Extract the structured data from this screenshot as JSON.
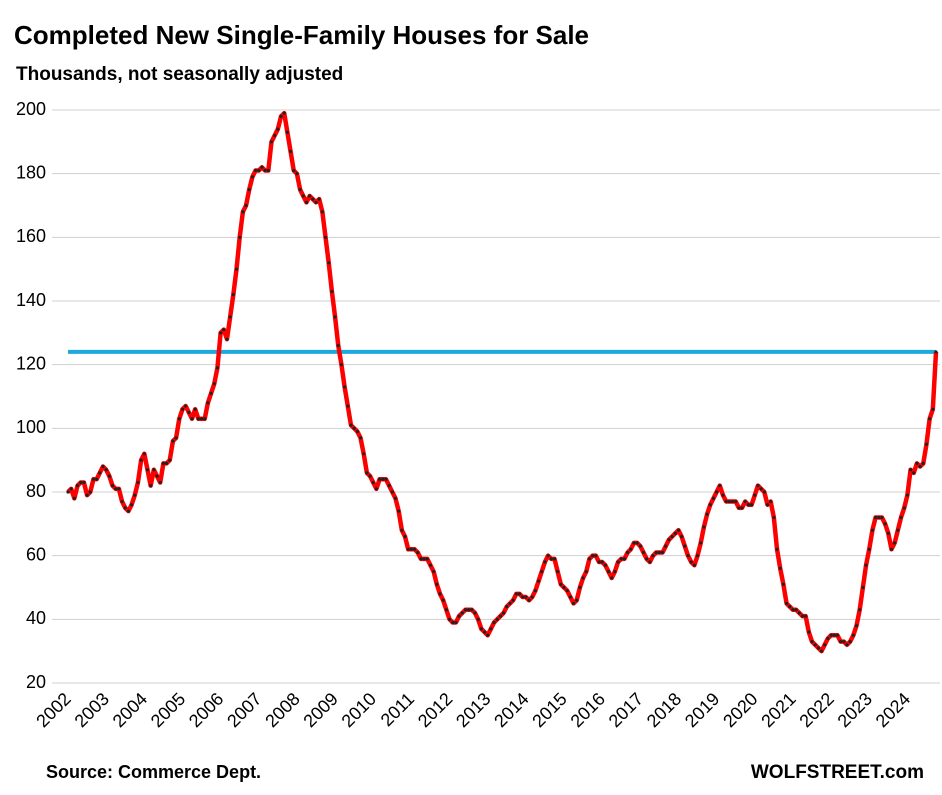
{
  "chart_data": {
    "type": "line",
    "title": "Completed New Single-Family Houses for Sale",
    "subtitle": "Thousands, not seasonally adjusted",
    "source": "Source: Commerce Dept.",
    "brand": "WOLFSTREET.com",
    "categories": [
      "2002",
      null,
      null,
      null,
      null,
      null,
      null,
      null,
      null,
      null,
      null,
      null,
      "2003",
      null,
      null,
      null,
      null,
      null,
      null,
      null,
      null,
      null,
      null,
      null,
      "2004",
      null,
      null,
      null,
      null,
      null,
      null,
      null,
      null,
      null,
      null,
      null,
      "2005",
      null,
      null,
      null,
      null,
      null,
      null,
      null,
      null,
      null,
      null,
      null,
      "2006",
      null,
      null,
      null,
      null,
      null,
      null,
      null,
      null,
      null,
      null,
      null,
      "2007",
      null,
      null,
      null,
      null,
      null,
      null,
      null,
      null,
      null,
      null,
      null,
      "2008",
      null,
      null,
      null,
      null,
      null,
      null,
      null,
      null,
      null,
      null,
      null,
      "2009",
      null,
      null,
      null,
      null,
      null,
      null,
      null,
      null,
      null,
      null,
      null,
      "2010",
      null,
      null,
      null,
      null,
      null,
      null,
      null,
      null,
      null,
      null,
      null,
      "2011",
      null,
      null,
      null,
      null,
      null,
      null,
      null,
      null,
      null,
      null,
      null,
      "2012",
      null,
      null,
      null,
      null,
      null,
      null,
      null,
      null,
      null,
      null,
      null,
      "2013",
      null,
      null,
      null,
      null,
      null,
      null,
      null,
      null,
      null,
      null,
      null,
      "2014",
      null,
      null,
      null,
      null,
      null,
      null,
      null,
      null,
      null,
      null,
      null,
      "2015",
      null,
      null,
      null,
      null,
      null,
      null,
      null,
      null,
      null,
      null,
      null,
      "2016",
      null,
      null,
      null,
      null,
      null,
      null,
      null,
      null,
      null,
      null,
      null,
      "2017",
      null,
      null,
      null,
      null,
      null,
      null,
      null,
      null,
      null,
      null,
      null,
      "2018",
      null,
      null,
      null,
      null,
      null,
      null,
      null,
      null,
      null,
      null,
      null,
      "2019",
      null,
      null,
      null,
      null,
      null,
      null,
      null,
      null,
      null,
      null,
      null,
      "2020",
      null,
      null,
      null,
      null,
      null,
      null,
      null,
      null,
      null,
      null,
      null,
      "2021",
      null,
      null,
      null,
      null,
      null,
      null,
      null,
      null,
      null,
      null,
      null,
      "2022",
      null,
      null,
      null,
      null,
      null,
      null,
      null,
      null,
      null,
      null,
      null,
      "2023",
      null,
      null,
      null,
      null,
      null,
      null,
      null,
      null,
      null,
      null,
      null,
      "2024",
      null,
      null,
      null,
      null,
      null,
      null,
      null,
      null,
      null
    ],
    "series": [
      {
        "color": "#ff0000",
        "marker_color": "#222222",
        "values": [
          80,
          81,
          78,
          82,
          83,
          83,
          79,
          80,
          84,
          84,
          86,
          88,
          87,
          85,
          82,
          81,
          81,
          77,
          75,
          74,
          76,
          79,
          83,
          90,
          92,
          87,
          82,
          87,
          85,
          83,
          89,
          89,
          90,
          96,
          97,
          103,
          106,
          107,
          105,
          103,
          106,
          103,
          103,
          103,
          108,
          111,
          114,
          119,
          130,
          131,
          128,
          135,
          142,
          150,
          160,
          168,
          170,
          175,
          179,
          181,
          181,
          182,
          181,
          181,
          190,
          192,
          194,
          198,
          199,
          193,
          187,
          181,
          180,
          175,
          173,
          171,
          173,
          172,
          171,
          172,
          168,
          160,
          152,
          143,
          135,
          126,
          120,
          113,
          107,
          101,
          100,
          99,
          97,
          92,
          86,
          85,
          83,
          81,
          84,
          84,
          84,
          82,
          80,
          78,
          74,
          68,
          66,
          62,
          62,
          62,
          61,
          59,
          59,
          59,
          57,
          55,
          51,
          48,
          46,
          43,
          40,
          39,
          39,
          41,
          42,
          43,
          43,
          43,
          42,
          40,
          37,
          36,
          35,
          37,
          39,
          40,
          41,
          42,
          44,
          45,
          46,
          48,
          48,
          47,
          47,
          46,
          47,
          49,
          52,
          55,
          58,
          60,
          59,
          59,
          55,
          51,
          50,
          49,
          47,
          45,
          46,
          50,
          53,
          55,
          59,
          60,
          60,
          58,
          58,
          57,
          55,
          53,
          55,
          58,
          59,
          59,
          61,
          62,
          64,
          64,
          63,
          61,
          59,
          58,
          60,
          61,
          61,
          61,
          63,
          65,
          66,
          67,
          68,
          66,
          63,
          60,
          58,
          57,
          60,
          64,
          69,
          73,
          76,
          78,
          80,
          82,
          79,
          77,
          77,
          77,
          77,
          75,
          75,
          77,
          76,
          76,
          79,
          82,
          81,
          80,
          76,
          77,
          72,
          62,
          56,
          51,
          45,
          44,
          43,
          43,
          42,
          41,
          41,
          36,
          33,
          32,
          31,
          30,
          32,
          34,
          35,
          35,
          35,
          33,
          33,
          32,
          33,
          35,
          38,
          43,
          50,
          57,
          62,
          68,
          72,
          72,
          72,
          70,
          67,
          62,
          64,
          68,
          72,
          75,
          79,
          87,
          86,
          89,
          88,
          89,
          95,
          103,
          106,
          124
        ]
      }
    ],
    "reference_line": {
      "value": 124,
      "color": "#1fa8e0"
    },
    "ylim": [
      20,
      200
    ],
    "yticks": [
      20,
      40,
      60,
      80,
      100,
      120,
      140,
      160,
      180,
      200
    ],
    "grid": true
  }
}
